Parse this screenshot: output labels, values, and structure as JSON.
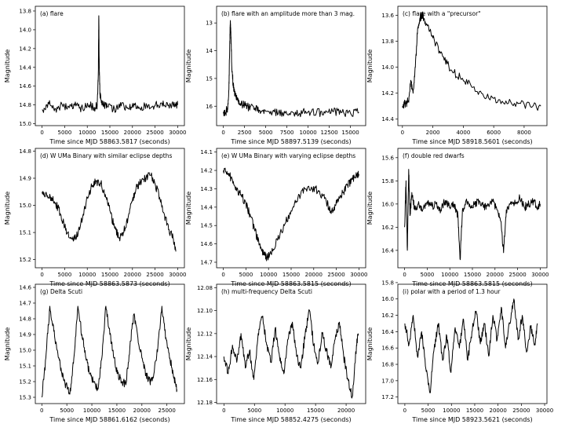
{
  "figure": {
    "ylabel": "Magnitude"
  },
  "chart_data": [
    {
      "type": "line",
      "title": "(a) flare",
      "xlabel": "Time since MJD 58863.5817 (seconds)",
      "ylabel": "Magnitude",
      "xlim": [
        -1500,
        31500
      ],
      "ylim": [
        15.02,
        13.75
      ],
      "y_inverted": true,
      "xticks": [
        "0",
        "5000",
        "10000",
        "15000",
        "20000",
        "25000",
        "30000"
      ],
      "yticks": [
        "13.8",
        "14.0",
        "14.2",
        "14.4",
        "14.6",
        "14.8",
        "15.0"
      ],
      "grid": false,
      "series": [
        {
          "x": [
            0,
            1500,
            3000,
            4500,
            6000,
            7500,
            9000,
            10500,
            11800,
            12200,
            12450,
            12550,
            12650,
            12800,
            13100,
            13600,
            14500,
            16000,
            17500,
            19000,
            20500,
            22000,
            23500,
            25000,
            26500,
            28000,
            29500,
            30000
          ],
          "y": [
            14.85,
            14.79,
            14.84,
            14.8,
            14.83,
            14.81,
            14.84,
            14.8,
            14.83,
            14.8,
            14.45,
            13.85,
            14.4,
            14.68,
            14.77,
            14.8,
            14.82,
            14.84,
            14.81,
            14.84,
            14.8,
            14.82,
            14.8,
            14.81,
            14.78,
            14.8,
            14.79,
            14.8
          ]
        }
      ]
    },
    {
      "type": "line",
      "title": "(b) flare with an amplitude more than 3 mag.",
      "xlabel": "Time since MJD 58897.5139 (seconds)",
      "ylabel": "Magnitude",
      "xlim": [
        -800,
        16800
      ],
      "ylim": [
        16.7,
        12.4
      ],
      "y_inverted": true,
      "xticks": [
        "0",
        "2500",
        "5000",
        "7500",
        "10000",
        "12500",
        "15000"
      ],
      "yticks": [
        "13",
        "14",
        "15",
        "16"
      ],
      "grid": false,
      "series": [
        {
          "x": [
            0,
            250,
            500,
            650,
            750,
            820,
            900,
            1000,
            1150,
            1350,
            1600,
            2000,
            2500,
            3000,
            3600,
            4300,
            5000,
            6000,
            7000,
            8000,
            9000,
            10000,
            11000,
            12000,
            13000,
            14000,
            15000,
            16000
          ],
          "y": [
            16.2,
            16.25,
            16.05,
            15.4,
            13.8,
            12.95,
            13.5,
            14.6,
            15.2,
            15.55,
            15.75,
            15.9,
            15.95,
            16.05,
            16.1,
            16.15,
            16.18,
            16.2,
            16.22,
            16.2,
            16.25,
            16.2,
            16.22,
            16.25,
            16.2,
            16.22,
            16.25,
            16.22
          ]
        }
      ]
    },
    {
      "type": "line",
      "title": "(c) flare with a \"precursor\"",
      "xlabel": "Time since MJD 58918.5601 (seconds)",
      "ylabel": "Magnitude",
      "xlim": [
        -300,
        9500
      ],
      "ylim": [
        14.45,
        13.53
      ],
      "y_inverted": true,
      "xticks": [
        "0",
        "2000",
        "4000",
        "6000",
        "8000"
      ],
      "yticks": [
        "13.6",
        "13.8",
        "14.0",
        "14.2",
        "14.4"
      ],
      "grid": false,
      "series": [
        {
          "x": [
            0,
            200,
            400,
            550,
            700,
            850,
            1000,
            1150,
            1300,
            1500,
            1800,
            2200,
            2700,
            3200,
            3800,
            4500,
            5200,
            6000,
            6800,
            7600,
            8400,
            9100
          ],
          "y": [
            14.3,
            14.28,
            14.26,
            14.1,
            14.2,
            14.0,
            13.7,
            13.62,
            13.6,
            13.65,
            13.72,
            13.82,
            13.92,
            14.02,
            14.08,
            14.14,
            14.2,
            14.24,
            14.26,
            14.28,
            14.3,
            14.3
          ]
        }
      ]
    },
    {
      "type": "line",
      "title": "(d) W UMa Binary with similar eclipse depths",
      "xlabel": "Time since MJD 58863.5873 (seconds)",
      "ylabel": "Magnitude",
      "xlim": [
        -1500,
        31500
      ],
      "ylim": [
        15.23,
        14.79
      ],
      "y_inverted": true,
      "xticks": [
        "0",
        "5000",
        "10000",
        "15000",
        "20000",
        "25000",
        "30000"
      ],
      "yticks": [
        "14.8",
        "14.9",
        "15.0",
        "15.1",
        "15.2"
      ],
      "grid": false,
      "series": [
        {
          "x": [
            0,
            1000,
            2000,
            3000,
            4000,
            5000,
            6000,
            7000,
            8000,
            9000,
            10000,
            11000,
            12000,
            13000,
            14000,
            15000,
            16000,
            17000,
            18000,
            19000,
            20000,
            21000,
            22000,
            23000,
            24000,
            25000,
            26000,
            27000,
            28000,
            29000,
            29600
          ],
          "y": [
            14.95,
            14.96,
            14.97,
            14.99,
            15.03,
            15.08,
            15.12,
            15.13,
            15.1,
            15.04,
            14.97,
            14.93,
            14.91,
            14.92,
            14.96,
            15.02,
            15.08,
            15.12,
            15.1,
            15.05,
            14.98,
            14.93,
            14.91,
            14.9,
            14.89,
            14.92,
            14.97,
            15.03,
            15.09,
            15.12,
            15.17
          ]
        }
      ]
    },
    {
      "type": "line",
      "title": "(e) W UMa Binary with varying eclipse depths",
      "xlabel": "Time since MJD 58863.5815 (seconds)",
      "ylabel": "Magnitude",
      "xlim": [
        -1500,
        31500
      ],
      "ylim": [
        14.73,
        14.08
      ],
      "y_inverted": true,
      "xticks": [
        "0",
        "5000",
        "10000",
        "15000",
        "20000",
        "25000",
        "30000"
      ],
      "yticks": [
        "14.1",
        "14.2",
        "14.3",
        "14.4",
        "14.5",
        "14.6",
        "14.7"
      ],
      "grid": false,
      "series": [
        {
          "x": [
            0,
            1000,
            2000,
            3000,
            4000,
            5000,
            6000,
            7000,
            8000,
            9000,
            9600,
            10500,
            12000,
            13500,
            15000,
            16500,
            18000,
            19500,
            21000,
            22000,
            23000,
            23700,
            24500,
            25500,
            26500,
            27500,
            28500,
            29500,
            30000
          ],
          "y": [
            14.2,
            14.22,
            14.25,
            14.3,
            14.34,
            14.38,
            14.45,
            14.53,
            14.6,
            14.66,
            14.68,
            14.65,
            14.58,
            14.5,
            14.42,
            14.35,
            14.3,
            14.29,
            14.31,
            14.34,
            14.38,
            14.42,
            14.4,
            14.36,
            14.32,
            14.28,
            14.25,
            14.23,
            14.22
          ]
        }
      ]
    },
    {
      "type": "line",
      "title": "(f) double red dwarfs",
      "xlabel": "Time since MJD 58863.5815 (seconds)",
      "ylabel": "Magnitude",
      "xlim": [
        -1500,
        31500
      ],
      "ylim": [
        16.55,
        15.52
      ],
      "y_inverted": true,
      "xticks": [
        "0",
        "5000",
        "10000",
        "15000",
        "20000",
        "25000",
        "30000"
      ],
      "yticks": [
        "15.6",
        "15.8",
        "16.0",
        "16.2",
        "16.4"
      ],
      "grid": false,
      "series": [
        {
          "x": [
            0,
            300,
            600,
            900,
            1200,
            1600,
            2200,
            3000,
            4000,
            5000,
            6000,
            7000,
            8000,
            9000,
            10000,
            11000,
            11800,
            12300,
            12800,
            13500,
            14500,
            15500,
            16500,
            17500,
            18500,
            19500,
            20500,
            21300,
            21900,
            22500,
            23500,
            24500,
            25500,
            26500,
            27500,
            28500,
            29500,
            30000
          ],
          "y": [
            16.2,
            15.8,
            16.4,
            15.7,
            16.1,
            15.9,
            16.05,
            16.0,
            16.05,
            15.98,
            16.02,
            16.0,
            16.05,
            15.97,
            16.03,
            16.0,
            16.1,
            16.48,
            16.05,
            15.98,
            16.02,
            16.0,
            15.97,
            16.03,
            16.0,
            15.98,
            16.05,
            16.15,
            16.42,
            16.05,
            15.98,
            16.0,
            15.95,
            16.03,
            16.0,
            15.97,
            16.02,
            16.0
          ]
        }
      ]
    },
    {
      "type": "line",
      "title": "(g) Delta Scuti",
      "xlabel": "Time since MJD 58861.6162 (seconds)",
      "ylabel": "Magnitude",
      "xlim": [
        -1300,
        28500
      ],
      "ylim": [
        15.34,
        14.58
      ],
      "y_inverted": true,
      "xticks": [
        "0",
        "5000",
        "10000",
        "15000",
        "20000",
        "25000"
      ],
      "yticks": [
        "14.6",
        "14.7",
        "14.8",
        "14.9",
        "15.0",
        "15.1",
        "15.2",
        "15.3"
      ],
      "grid": false,
      "series": [
        {
          "x": [
            0,
            800,
            1600,
            2400,
            3200,
            4000,
            4800,
            5600,
            6400,
            7200,
            8000,
            8800,
            9600,
            10400,
            11200,
            12000,
            12800,
            13600,
            14400,
            15200,
            16000,
            16800,
            17600,
            18400,
            19200,
            20000,
            20800,
            21600,
            22400,
            23200,
            24000,
            24800,
            25600,
            26400,
            27000
          ],
          "y": [
            15.3,
            15.05,
            14.72,
            14.88,
            15.02,
            15.15,
            15.22,
            15.28,
            15.05,
            14.72,
            14.9,
            15.05,
            15.15,
            15.2,
            15.25,
            15.05,
            14.72,
            14.9,
            15.05,
            15.15,
            15.2,
            15.22,
            14.98,
            14.77,
            14.92,
            15.05,
            15.15,
            15.2,
            15.15,
            14.98,
            14.72,
            14.92,
            15.05,
            15.18,
            15.25
          ]
        }
      ]
    },
    {
      "type": "line",
      "title": "(h) multi-frequency Delta Scuti",
      "xlabel": "Time since MJD 58852.4275 (seconds)",
      "ylabel": "Magnitude",
      "xlim": [
        -1200,
        23200
      ],
      "ylim": [
        12.181,
        12.077
      ],
      "y_inverted": true,
      "xticks": [
        "0",
        "5000",
        "10000",
        "15000",
        "20000"
      ],
      "yticks": [
        "12.08",
        "12.10",
        "12.12",
        "12.14",
        "12.16",
        "12.18"
      ],
      "grid": false,
      "series": [
        {
          "x": [
            0,
            700,
            1400,
            2100,
            2800,
            3500,
            4200,
            4900,
            5600,
            6300,
            7000,
            7700,
            8400,
            9100,
            9800,
            10500,
            11200,
            11900,
            12600,
            13300,
            14000,
            14700,
            15400,
            16100,
            16800,
            17500,
            18200,
            18900,
            19600,
            20300,
            21000,
            21700,
            22000
          ],
          "y": [
            12.14,
            12.155,
            12.13,
            12.145,
            12.12,
            12.15,
            12.135,
            12.16,
            12.12,
            12.105,
            12.13,
            12.145,
            12.115,
            12.14,
            12.155,
            12.125,
            12.11,
            12.14,
            12.15,
            12.12,
            12.1,
            12.13,
            12.145,
            12.12,
            12.135,
            12.15,
            12.125,
            12.11,
            12.14,
            12.16,
            12.175,
            12.13,
            12.12
          ]
        }
      ]
    },
    {
      "type": "line",
      "title": "(i) polar with a period of 1.3 hour",
      "xlabel": "Time since MJD 58923.5621 (seconds)",
      "ylabel": "Magnitude",
      "xlim": [
        -1500,
        30500
      ],
      "ylim": [
        17.28,
        15.82
      ],
      "y_inverted": true,
      "xticks": [
        "0",
        "5000",
        "10000",
        "15000",
        "20000",
        "25000",
        "30000"
      ],
      "yticks": [
        "15.8",
        "16.0",
        "16.2",
        "16.4",
        "16.6",
        "16.8",
        "17.0",
        "17.2"
      ],
      "grid": false,
      "series": [
        {
          "x": [
            0,
            900,
            1800,
            2700,
            3600,
            4500,
            5400,
            6300,
            7200,
            8100,
            9000,
            9900,
            10800,
            11700,
            12600,
            13500,
            14400,
            15300,
            16200,
            17100,
            18000,
            18900,
            19800,
            20700,
            21600,
            22500,
            23400,
            24300,
            25200,
            26100,
            27000,
            27900,
            28500
          ],
          "y": [
            16.3,
            16.55,
            16.2,
            16.7,
            16.4,
            16.85,
            17.15,
            16.6,
            16.3,
            16.75,
            16.45,
            16.9,
            16.35,
            16.6,
            16.25,
            16.75,
            16.4,
            16.15,
            16.55,
            16.3,
            16.7,
            16.2,
            16.5,
            16.1,
            16.6,
            16.3,
            16.0,
            16.5,
            16.2,
            16.65,
            16.35,
            16.55,
            16.3
          ]
        }
      ]
    }
  ]
}
